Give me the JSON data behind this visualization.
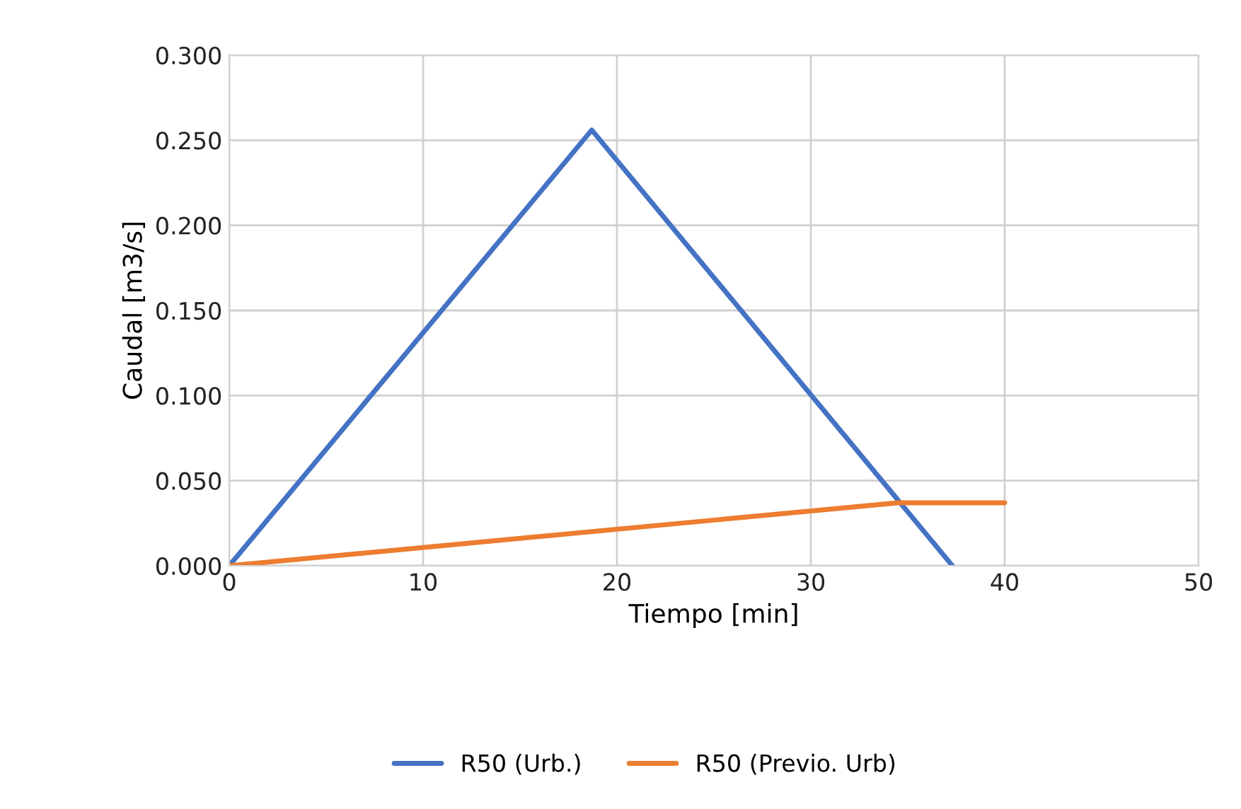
{
  "chart_data": {
    "type": "line",
    "xlabel": "Tiempo [min]",
    "ylabel": "Caudal [m3/s]",
    "series": [
      {
        "name": "R50 (Urb.)",
        "color": "#4472c4",
        "x": [
          0,
          18.7,
          37.3
        ],
        "values": [
          0,
          0.256,
          0
        ]
      },
      {
        "name": "R50 (Previo. Urb)",
        "color": "#ed7d31",
        "x": [
          0,
          34.5,
          40
        ],
        "values": [
          0,
          0.037,
          0.037
        ]
      }
    ],
    "xlim": [
      0,
      50
    ],
    "xticks": [
      0,
      10,
      20,
      30,
      40,
      50
    ],
    "ylim": [
      0,
      0.3
    ],
    "yticks": [
      {
        "value": 0,
        "label": "0.000"
      },
      {
        "value": 0.05,
        "label": "0.050"
      },
      {
        "value": 0.1,
        "label": "0.100"
      },
      {
        "value": 0.15,
        "label": "0.150"
      },
      {
        "value": 0.2,
        "label": "0.200"
      },
      {
        "value": 0.25,
        "label": "0.250"
      },
      {
        "value": 0.3,
        "label": "0.300"
      }
    ],
    "grid": true,
    "legend": "bottom"
  }
}
